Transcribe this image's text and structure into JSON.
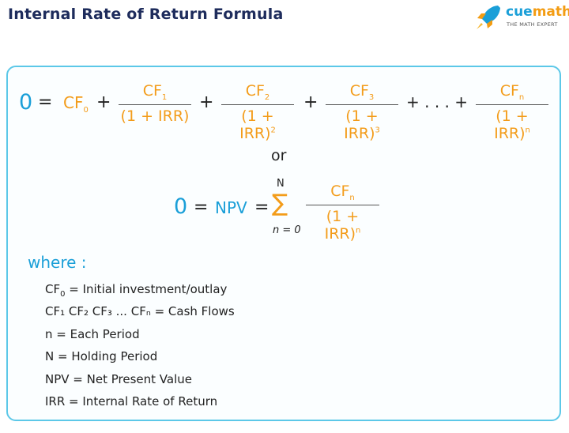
{
  "header": {
    "title": "Internal Rate of Return Formula",
    "brand_cue": "cue",
    "brand_math": "math",
    "tagline": "THE MATH EXPERT",
    "logo_icon": "rocket-icon"
  },
  "formula1": {
    "lhs": "0",
    "eq": "=",
    "cf0": "CF",
    "cf0_sub": "0",
    "plus": "+",
    "ellipsis": "+ . . . +",
    "fractions": [
      {
        "num": "CF",
        "sub": "1",
        "den": "(1 + IRR)",
        "sup": ""
      },
      {
        "num": "CF",
        "sub": "2",
        "den": "(1 + IRR)",
        "sup": "2"
      },
      {
        "num": "CF",
        "sub": "3",
        "den": "(1 + IRR)",
        "sup": "3"
      },
      {
        "num": "CF",
        "sub": "n",
        "den": "(1 + IRR)",
        "sup": "n"
      }
    ]
  },
  "or": "or",
  "formula2": {
    "lhs": "0",
    "eq": "=",
    "npv": "NPV",
    "sigma": "∑",
    "upper": "N",
    "lower": "n = 0",
    "num": "CF",
    "sub": "n",
    "den": "(1 + IRR)",
    "sup": "n"
  },
  "where": {
    "label": "where :",
    "items": [
      {
        "sym": "CF",
        "sub": "0",
        "text": " = Initial investment/outlay"
      },
      {
        "sym": "CF₁ CF₂ CF₃ ... CFₙ",
        "sub": "",
        "text": " = Cash Flows"
      },
      {
        "sym": "n",
        "sub": "",
        "text": " = Each Period"
      },
      {
        "sym": "N",
        "sub": "",
        "text": " = Holding Period"
      },
      {
        "sym": "NPV",
        "sub": "",
        "text": " = Net Present Value"
      },
      {
        "sym": "IRR",
        "sub": "",
        "text": " = Internal Rate of Return"
      }
    ]
  },
  "colors": {
    "title": "#1e2c5c",
    "blue": "#1a9fd8",
    "orange": "#f39c1a",
    "border": "#5cc8e8"
  }
}
